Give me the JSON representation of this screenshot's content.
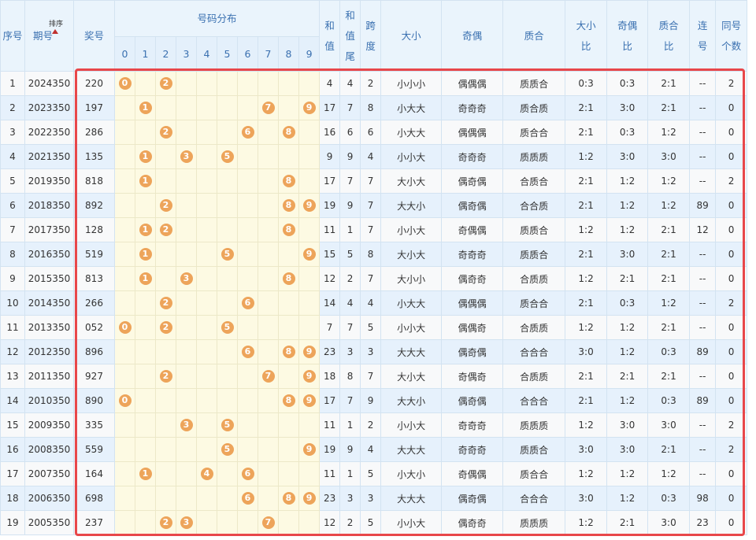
{
  "header": {
    "columns": [
      "序号",
      "期号",
      "奖号",
      "号码分布",
      "和值",
      "和值尾",
      "跨度",
      "大小",
      "奇偶",
      "质合",
      "大小比",
      "奇偶比",
      "质合比",
      "连号",
      "同号个数"
    ],
    "sort": "排序",
    "digits": [
      0,
      1,
      2,
      3,
      4,
      5,
      6,
      7,
      8,
      9
    ]
  },
  "table": {
    "rows": [
      {
        "index": 1,
        "issue": "2024350",
        "number": "220",
        "balls": [
          0,
          2
        ],
        "sum": 4,
        "tail": 4,
        "span": 2,
        "size": "小小小",
        "parity": "偶偶偶",
        "prime": "质质合",
        "size_ratio": "0:3",
        "parity_ratio": "0:3",
        "prime_ratio": "2:1",
        "consecutive": "--",
        "same": 2
      },
      {
        "index": 2,
        "issue": "2023350",
        "number": "197",
        "balls": [
          1,
          7,
          9
        ],
        "sum": 17,
        "tail": 7,
        "span": 8,
        "size": "小大大",
        "parity": "奇奇奇",
        "prime": "质合质",
        "size_ratio": "2:1",
        "parity_ratio": "3:0",
        "prime_ratio": "2:1",
        "consecutive": "--",
        "same": 0
      },
      {
        "index": 3,
        "issue": "2022350",
        "number": "286",
        "balls": [
          2,
          6,
          8
        ],
        "sum": 16,
        "tail": 6,
        "span": 6,
        "size": "小大大",
        "parity": "偶偶偶",
        "prime": "质合合",
        "size_ratio": "2:1",
        "parity_ratio": "0:3",
        "prime_ratio": "1:2",
        "consecutive": "--",
        "same": 0
      },
      {
        "index": 4,
        "issue": "2021350",
        "number": "135",
        "balls": [
          1,
          3,
          5
        ],
        "sum": 9,
        "tail": 9,
        "span": 4,
        "size": "小小大",
        "parity": "奇奇奇",
        "prime": "质质质",
        "size_ratio": "1:2",
        "parity_ratio": "3:0",
        "prime_ratio": "3:0",
        "consecutive": "--",
        "same": 0
      },
      {
        "index": 5,
        "issue": "2019350",
        "number": "818",
        "balls": [
          1,
          8
        ],
        "sum": 17,
        "tail": 7,
        "span": 7,
        "size": "大小大",
        "parity": "偶奇偶",
        "prime": "合质合",
        "size_ratio": "2:1",
        "parity_ratio": "1:2",
        "prime_ratio": "1:2",
        "consecutive": "--",
        "same": 2
      },
      {
        "index": 6,
        "issue": "2018350",
        "number": "892",
        "balls": [
          2,
          8,
          9
        ],
        "sum": 19,
        "tail": 9,
        "span": 7,
        "size": "大大小",
        "parity": "偶奇偶",
        "prime": "合合质",
        "size_ratio": "2:1",
        "parity_ratio": "1:2",
        "prime_ratio": "1:2",
        "consecutive": "89",
        "same": 0
      },
      {
        "index": 7,
        "issue": "2017350",
        "number": "128",
        "balls": [
          1,
          2,
          8
        ],
        "sum": 11,
        "tail": 1,
        "span": 7,
        "size": "小小大",
        "parity": "奇偶偶",
        "prime": "质质合",
        "size_ratio": "1:2",
        "parity_ratio": "1:2",
        "prime_ratio": "2:1",
        "consecutive": "12",
        "same": 0
      },
      {
        "index": 8,
        "issue": "2016350",
        "number": "519",
        "balls": [
          1,
          5,
          9
        ],
        "sum": 15,
        "tail": 5,
        "span": 8,
        "size": "大小大",
        "parity": "奇奇奇",
        "prime": "质质合",
        "size_ratio": "2:1",
        "parity_ratio": "3:0",
        "prime_ratio": "2:1",
        "consecutive": "--",
        "same": 0
      },
      {
        "index": 9,
        "issue": "2015350",
        "number": "813",
        "balls": [
          1,
          3,
          8
        ],
        "sum": 12,
        "tail": 2,
        "span": 7,
        "size": "大小小",
        "parity": "偶奇奇",
        "prime": "合质质",
        "size_ratio": "1:2",
        "parity_ratio": "2:1",
        "prime_ratio": "2:1",
        "consecutive": "--",
        "same": 0
      },
      {
        "index": 10,
        "issue": "2014350",
        "number": "266",
        "balls": [
          2,
          6
        ],
        "sum": 14,
        "tail": 4,
        "span": 4,
        "size": "小大大",
        "parity": "偶偶偶",
        "prime": "质合合",
        "size_ratio": "2:1",
        "parity_ratio": "0:3",
        "prime_ratio": "1:2",
        "consecutive": "--",
        "same": 2
      },
      {
        "index": 11,
        "issue": "2013350",
        "number": "052",
        "balls": [
          0,
          2,
          5
        ],
        "sum": 7,
        "tail": 7,
        "span": 5,
        "size": "小小大",
        "parity": "偶偶奇",
        "prime": "合质质",
        "size_ratio": "1:2",
        "parity_ratio": "1:2",
        "prime_ratio": "2:1",
        "consecutive": "--",
        "same": 0
      },
      {
        "index": 12,
        "issue": "2012350",
        "number": "896",
        "balls": [
          6,
          8,
          9
        ],
        "sum": 23,
        "tail": 3,
        "span": 3,
        "size": "大大大",
        "parity": "偶奇偶",
        "prime": "合合合",
        "size_ratio": "3:0",
        "parity_ratio": "1:2",
        "prime_ratio": "0:3",
        "consecutive": "89",
        "same": 0
      },
      {
        "index": 13,
        "issue": "2011350",
        "number": "927",
        "balls": [
          2,
          7,
          9
        ],
        "sum": 18,
        "tail": 8,
        "span": 7,
        "size": "大小大",
        "parity": "奇偶奇",
        "prime": "合质质",
        "size_ratio": "2:1",
        "parity_ratio": "2:1",
        "prime_ratio": "2:1",
        "consecutive": "--",
        "same": 0
      },
      {
        "index": 14,
        "issue": "2010350",
        "number": "890",
        "balls": [
          0,
          8,
          9
        ],
        "sum": 17,
        "tail": 7,
        "span": 9,
        "size": "大大小",
        "parity": "偶奇偶",
        "prime": "合合合",
        "size_ratio": "2:1",
        "parity_ratio": "1:2",
        "prime_ratio": "0:3",
        "consecutive": "89",
        "same": 0
      },
      {
        "index": 15,
        "issue": "2009350",
        "number": "335",
        "balls": [
          3,
          5
        ],
        "sum": 11,
        "tail": 1,
        "span": 2,
        "size": "小小大",
        "parity": "奇奇奇",
        "prime": "质质质",
        "size_ratio": "1:2",
        "parity_ratio": "3:0",
        "prime_ratio": "3:0",
        "consecutive": "--",
        "same": 2
      },
      {
        "index": 16,
        "issue": "2008350",
        "number": "559",
        "balls": [
          5,
          9
        ],
        "sum": 19,
        "tail": 9,
        "span": 4,
        "size": "大大大",
        "parity": "奇奇奇",
        "prime": "质质合",
        "size_ratio": "3:0",
        "parity_ratio": "3:0",
        "prime_ratio": "2:1",
        "consecutive": "--",
        "same": 2
      },
      {
        "index": 17,
        "issue": "2007350",
        "number": "164",
        "balls": [
          1,
          4,
          6
        ],
        "sum": 11,
        "tail": 1,
        "span": 5,
        "size": "小大小",
        "parity": "奇偶偶",
        "prime": "质合合",
        "size_ratio": "1:2",
        "parity_ratio": "1:2",
        "prime_ratio": "1:2",
        "consecutive": "--",
        "same": 0
      },
      {
        "index": 18,
        "issue": "2006350",
        "number": "698",
        "balls": [
          6,
          8,
          9
        ],
        "sum": 23,
        "tail": 3,
        "span": 3,
        "size": "大大大",
        "parity": "偶奇偶",
        "prime": "合合合",
        "size_ratio": "3:0",
        "parity_ratio": "1:2",
        "prime_ratio": "0:3",
        "consecutive": "98",
        "same": 0
      },
      {
        "index": 19,
        "issue": "2005350",
        "number": "237",
        "balls": [
          2,
          3,
          7
        ],
        "sum": 12,
        "tail": 2,
        "span": 5,
        "size": "小小大",
        "parity": "偶奇奇",
        "prime": "质质质",
        "size_ratio": "1:2",
        "parity_ratio": "2:1",
        "prime_ratio": "3:0",
        "consecutive": "23",
        "same": 0
      }
    ]
  }
}
